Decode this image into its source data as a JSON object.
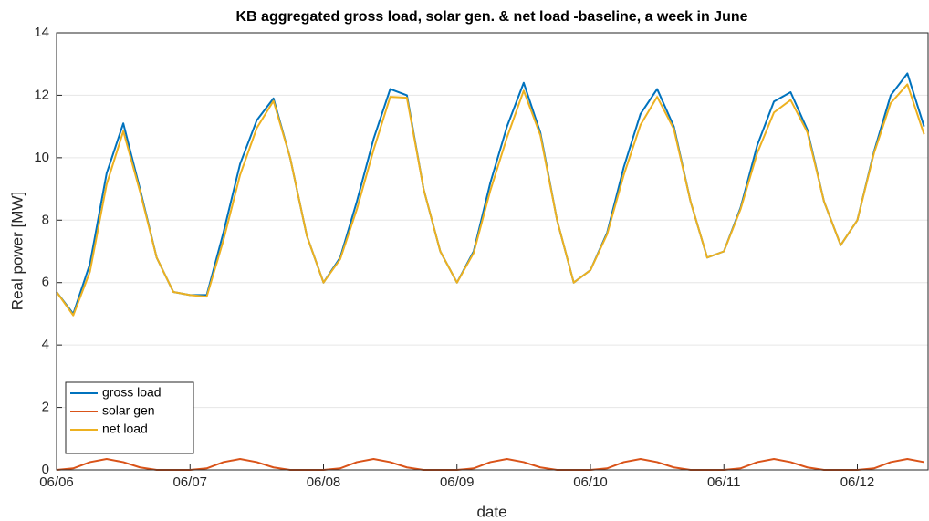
{
  "chart_data": {
    "type": "line",
    "title": "KB aggregated gross load, solar gen. & net load -baseline, a week in June",
    "xlabel": "date",
    "ylabel": "Real power [MW]",
    "x": [
      0,
      0.125,
      0.25,
      0.375,
      0.5,
      0.625,
      0.75,
      0.875,
      1,
      1.125,
      1.25,
      1.375,
      1.5,
      1.625,
      1.75,
      1.875,
      2,
      2.125,
      2.25,
      2.375,
      2.5,
      2.625,
      2.75,
      2.875,
      3,
      3.125,
      3.25,
      3.375,
      3.5,
      3.625,
      3.75,
      3.875,
      4,
      4.125,
      4.25,
      4.375,
      4.5,
      4.625,
      4.75,
      4.875,
      5,
      5.125,
      5.25,
      5.375,
      5.5,
      5.625,
      5.75,
      5.875,
      6,
      6.125,
      6.25,
      6.375,
      6.5
    ],
    "series": [
      {
        "name": "gross load",
        "color": "#0072BD",
        "values": [
          5.7,
          5.0,
          6.6,
          9.5,
          11.1,
          9.0,
          6.8,
          5.7,
          5.6,
          5.6,
          7.6,
          9.8,
          11.2,
          11.9,
          10.0,
          7.5,
          6.0,
          6.8,
          8.6,
          10.6,
          12.2,
          12.0,
          9.0,
          7.0,
          6.0,
          7.0,
          9.2,
          11.0,
          12.4,
          10.8,
          8.0,
          6.0,
          6.4,
          7.6,
          9.7,
          11.4,
          12.2,
          11.0,
          8.6,
          6.8,
          7.0,
          8.4,
          10.4,
          11.8,
          12.1,
          10.9,
          8.6,
          7.2,
          8.0,
          10.2,
          12.0,
          12.7,
          11.0
        ]
      },
      {
        "name": "solar gen",
        "color": "#D95319",
        "values": [
          0,
          0.05,
          0.25,
          0.35,
          0.25,
          0.08,
          0,
          0,
          0,
          0.05,
          0.25,
          0.35,
          0.25,
          0.08,
          0,
          0,
          0,
          0.05,
          0.25,
          0.35,
          0.25,
          0.08,
          0,
          0,
          0,
          0.05,
          0.25,
          0.35,
          0.25,
          0.08,
          0,
          0,
          0,
          0.05,
          0.25,
          0.35,
          0.25,
          0.08,
          0,
          0,
          0,
          0.05,
          0.25,
          0.35,
          0.25,
          0.08,
          0,
          0,
          0,
          0.05,
          0.25,
          0.35,
          0.25
        ]
      },
      {
        "name": "net load",
        "color": "#EDB120",
        "values": [
          5.7,
          4.95,
          6.35,
          9.15,
          10.85,
          8.92,
          6.8,
          5.7,
          5.6,
          5.55,
          7.35,
          9.45,
          10.95,
          11.82,
          10.0,
          7.5,
          6.0,
          6.75,
          8.35,
          10.25,
          11.95,
          11.92,
          9.0,
          7.0,
          6.0,
          6.95,
          8.95,
          10.65,
          12.15,
          10.72,
          8.0,
          6.0,
          6.4,
          7.55,
          9.45,
          11.05,
          11.95,
          10.92,
          8.6,
          6.8,
          7.0,
          8.35,
          10.15,
          11.45,
          11.85,
          10.82,
          8.6,
          7.2,
          8.0,
          10.15,
          11.75,
          12.35,
          10.75
        ]
      }
    ],
    "xlim": [
      0,
      6.53
    ],
    "xticks": [
      {
        "value": 0,
        "label": "06/06"
      },
      {
        "value": 1,
        "label": "06/07"
      },
      {
        "value": 2,
        "label": "06/08"
      },
      {
        "value": 3,
        "label": "06/09"
      },
      {
        "value": 4,
        "label": "06/10"
      },
      {
        "value": 5,
        "label": "06/11"
      },
      {
        "value": 6,
        "label": "06/12"
      }
    ],
    "ylim": [
      0,
      14
    ],
    "yticks": [
      0,
      2,
      4,
      6,
      8,
      10,
      12,
      14
    ],
    "ygrid": true,
    "legend": "lower left"
  }
}
